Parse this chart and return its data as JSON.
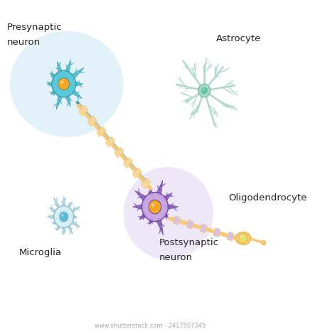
{
  "title": "",
  "labels": {
    "presynaptic": [
      "Presynaptic",
      "neuron"
    ],
    "astrocyte": "Astrocyte",
    "microglia": "Microglia",
    "postsynaptic": [
      "Postsynaptic",
      "neuron"
    ],
    "oligodendrocyte": "Oligodendrocyte",
    "watermark": "www.shutterstock.com · 2417507345"
  },
  "colors": {
    "background": "#ffffff",
    "bg_glow_pre": "#cce8f5",
    "bg_glow_post": "#ddd0f0",
    "neuron_body_fill": "#f5a623",
    "neuron_body_stroke": "#e08c10",
    "neuron_dendrite": "#5bc8d8",
    "neuron_dendrite_stroke": "#3a9aaa",
    "axon_fill": "#f5c87a",
    "axon_segment": "#e8b84b",
    "myelin_fill": "#f5d89a",
    "astrocyte_body": "#a8d8c8",
    "astrocyte_branch": "#b0d8cc",
    "astrocyte_nucleus": "#5ac8a0",
    "microglia_body": "#d8eef5",
    "microglia_spike": "#c0dde8",
    "microglia_stroke": "#88bfcc",
    "microglia_nucleus": "#5bbcd8",
    "post_body_fill": "#c8a0e0",
    "post_dendrite": "#9060c0",
    "post_stroke": "#6040a0",
    "oligo_body": "#f5c87a",
    "oligo_nucleus": "#e8e060",
    "oligo_myelin": "#d8c0e8",
    "label_color": "#222222"
  },
  "layout": {
    "xlim": [
      0,
      10
    ],
    "ylim": [
      0,
      10
    ],
    "figsize": [
      4.5,
      4.7
    ],
    "dpi": 100
  }
}
